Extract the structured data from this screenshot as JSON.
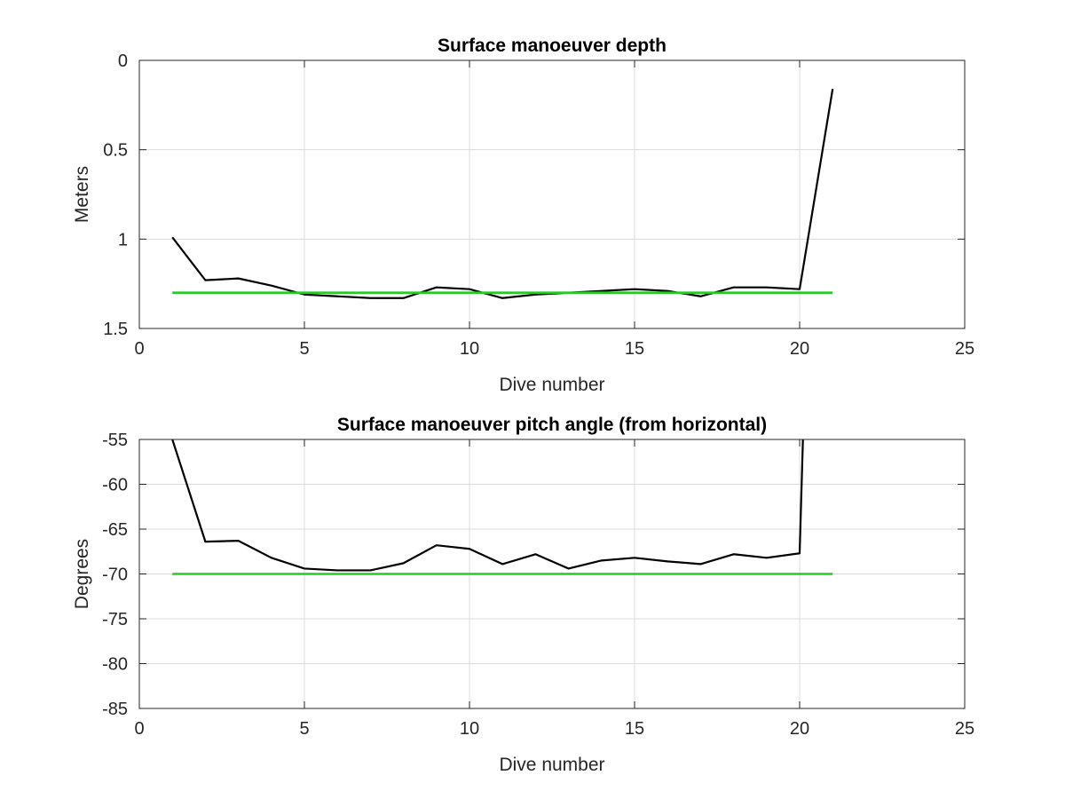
{
  "chart_data": [
    {
      "type": "line",
      "title": "Surface manoeuver depth",
      "xlabel": "Dive number",
      "ylabel": "Meters",
      "xlim": [
        0,
        25
      ],
      "ylim": [
        0,
        1.5
      ],
      "y_reversed": true,
      "grid": true,
      "xticks": [
        0,
        5,
        10,
        15,
        20,
        25
      ],
      "yticks": [
        0,
        0.5,
        1,
        1.5
      ],
      "xtick_labels": [
        "0",
        "5",
        "10",
        "15",
        "20",
        "25"
      ],
      "ytick_labels": [
        "0",
        "0.5",
        "1",
        "1.5"
      ],
      "series": [
        {
          "color": "#000000",
          "x": [
            1,
            2,
            3,
            4,
            5,
            6,
            7,
            8,
            9,
            10,
            11,
            12,
            13,
            14,
            15,
            16,
            17,
            18,
            19,
            20,
            21
          ],
          "y": [
            0.99,
            1.23,
            1.22,
            1.26,
            1.31,
            1.32,
            1.33,
            1.33,
            1.27,
            1.28,
            1.33,
            1.31,
            1.3,
            1.29,
            1.28,
            1.29,
            1.32,
            1.27,
            1.27,
            1.28,
            0.16
          ]
        },
        {
          "color": "#22cc22",
          "x": [
            1,
            21
          ],
          "y": [
            1.3,
            1.3
          ]
        }
      ]
    },
    {
      "type": "line",
      "title": "Surface manoeuver pitch angle (from horizontal)",
      "xlabel": "Dive number",
      "ylabel": "Degrees",
      "xlim": [
        0,
        25
      ],
      "ylim": [
        -85,
        -55
      ],
      "y_reversed": false,
      "grid": true,
      "xticks": [
        0,
        5,
        10,
        15,
        20,
        25
      ],
      "yticks": [
        -55,
        -60,
        -65,
        -70,
        -75,
        -80,
        -85
      ],
      "xtick_labels": [
        "0",
        "5",
        "10",
        "15",
        "20",
        "25"
      ],
      "ytick_labels": [
        "-55",
        "-60",
        "-65",
        "-70",
        "-75",
        "-80",
        "-85"
      ],
      "series": [
        {
          "color": "#000000",
          "x": [
            1,
            2,
            3,
            4,
            5,
            6,
            7,
            8,
            9,
            10,
            11,
            12,
            13,
            14,
            15,
            16,
            17,
            18,
            19,
            20,
            20.1
          ],
          "y": [
            -55,
            -66.4,
            -66.3,
            -68.2,
            -69.4,
            -69.6,
            -69.6,
            -68.8,
            -66.8,
            -67.2,
            -68.9,
            -67.8,
            -69.4,
            -68.5,
            -68.2,
            -68.6,
            -68.9,
            -67.8,
            -68.2,
            -67.7,
            -55
          ]
        },
        {
          "color": "#22cc22",
          "x": [
            1,
            21
          ],
          "y": [
            -70,
            -70
          ]
        }
      ]
    }
  ]
}
